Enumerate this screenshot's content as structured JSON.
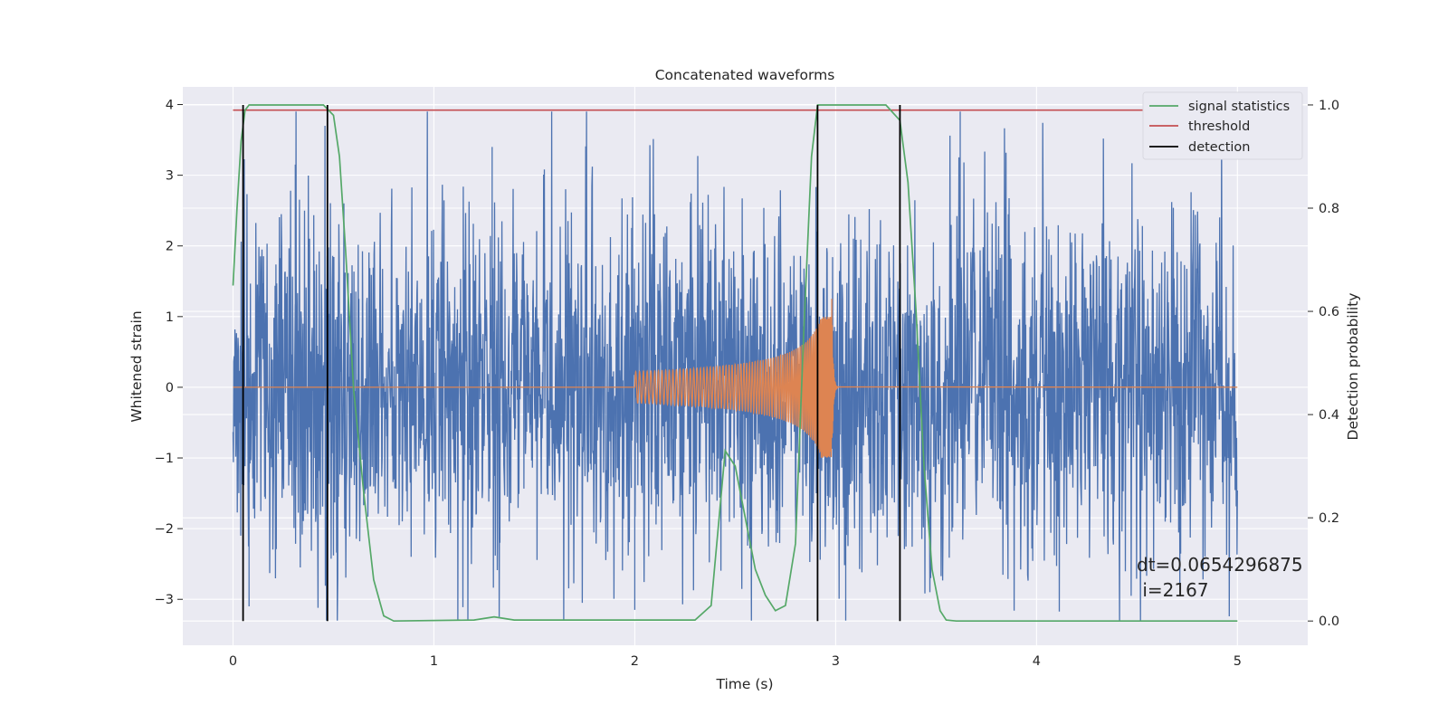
{
  "chart_data": {
    "type": "line",
    "title": "Concatenated waveforms",
    "xlabel": "Time (s)",
    "ylabel": "Whitened strain",
    "y2label": "Detection probability",
    "xlim": [
      -0.25,
      5.35
    ],
    "ylim": [
      -3.65,
      4.25
    ],
    "y2lim": [
      -0.047,
      1.035
    ],
    "xticks": [
      0,
      1,
      2,
      3,
      4,
      5
    ],
    "xtick_labels": [
      "0",
      "1",
      "2",
      "3",
      "4",
      "5"
    ],
    "yticks": [
      -3,
      -2,
      -1,
      0,
      1,
      2,
      3,
      4
    ],
    "ytick_labels": [
      "−3",
      "−2",
      "−1",
      "0",
      "1",
      "2",
      "3",
      "4"
    ],
    "y2ticks": [
      0.0,
      0.2,
      0.4,
      0.6,
      0.8,
      1.0
    ],
    "y2tick_labels": [
      "0.0",
      "0.2",
      "0.4",
      "0.6",
      "0.8",
      "1.0"
    ],
    "grid": true,
    "legend_position": "top-right",
    "colors": {
      "background": "#eaeaf2",
      "grid": "#ffffff",
      "strain": "#4c72b0",
      "chirp": "#dd8452",
      "signal": "#55a868",
      "threshold": "#c44e52",
      "detection": "#000000"
    },
    "legend": [
      {
        "label": "signal statistics",
        "color": "#55a868"
      },
      {
        "label": "threshold",
        "color": "#c44e52"
      },
      {
        "label": "detection",
        "color": "#000000"
      }
    ],
    "series": [
      {
        "name": "signal statistics",
        "axis": "right",
        "x": [
          0.0,
          0.02,
          0.04,
          0.06,
          0.08,
          0.1,
          0.3,
          0.45,
          0.5,
          0.53,
          0.56,
          0.6,
          0.65,
          0.7,
          0.75,
          0.8,
          1.2,
          1.3,
          1.4,
          2.3,
          2.38,
          2.42,
          2.45,
          2.5,
          2.55,
          2.6,
          2.65,
          2.7,
          2.75,
          2.8,
          2.84,
          2.88,
          2.91,
          2.95,
          3.25,
          3.32,
          3.36,
          3.4,
          3.44,
          3.48,
          3.52,
          3.55,
          3.6,
          5.0
        ],
        "y": [
          0.65,
          0.8,
          0.93,
          0.99,
          1.0,
          1.0,
          1.0,
          1.0,
          0.98,
          0.9,
          0.72,
          0.45,
          0.25,
          0.08,
          0.01,
          0.0,
          0.002,
          0.008,
          0.002,
          0.002,
          0.03,
          0.2,
          0.33,
          0.3,
          0.2,
          0.1,
          0.05,
          0.02,
          0.03,
          0.15,
          0.55,
          0.9,
          1.0,
          1.0,
          1.0,
          0.97,
          0.85,
          0.6,
          0.3,
          0.1,
          0.02,
          0.002,
          0.0,
          0.0
        ]
      },
      {
        "name": "threshold",
        "axis": "right",
        "x": [
          0.0,
          5.0
        ],
        "y": [
          0.99,
          0.99
        ]
      },
      {
        "name": "detection",
        "axis": "right",
        "segments": [
          {
            "x": 0.05,
            "y": [
              0.0,
              1.0
            ]
          },
          {
            "x": 0.47,
            "y": [
              0.0,
              1.0
            ]
          },
          {
            "x": 2.91,
            "y": [
              0.0,
              1.0
            ]
          },
          {
            "x": 3.32,
            "y": [
              0.0,
              1.0
            ]
          }
        ]
      }
    ],
    "strain": {
      "x_range": [
        0.0,
        5.0
      ],
      "typical_amplitude": 1.6,
      "min": -3.3,
      "max": 3.9,
      "notable_peaks": [
        {
          "x": 0.31,
          "y": 3.15
        },
        {
          "x": 1.29,
          "y": 3.4
        },
        {
          "x": 3.62,
          "y": 3.9
        },
        {
          "x": 2.0,
          "y": -3.15
        },
        {
          "x": 0.08,
          "y": -3.1
        },
        {
          "x": 3.05,
          "y": -3.3
        }
      ]
    },
    "chirp": {
      "start": 2.0,
      "merger": 2.98,
      "start_amplitude": 0.22,
      "peak_amplitude": 1.0
    },
    "annotations": [
      "dt=0.0654296875",
      " i=2167"
    ]
  }
}
